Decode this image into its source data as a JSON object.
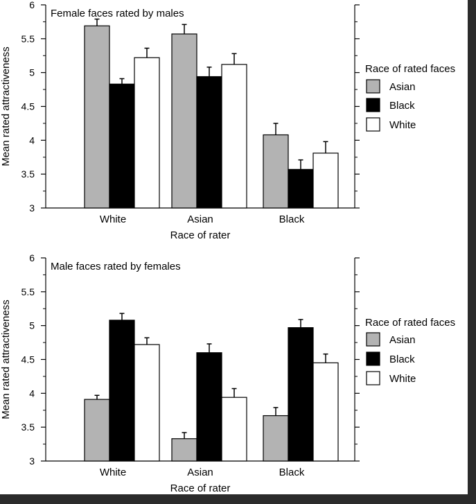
{
  "chart_data": [
    {
      "type": "bar",
      "title": "Female faces rated by males",
      "xlabel": "Race of rater",
      "ylabel": "Mean rated attractiveness",
      "ylim": [
        3,
        6
      ],
      "yticks": [
        "3",
        "3.5",
        "4",
        "4.5",
        "5",
        "5.5",
        "6"
      ],
      "categories": [
        "White",
        "Asian",
        "Black"
      ],
      "legend_title": "Race of rated faces",
      "legend_position": "right",
      "series": [
        {
          "name": "Asian",
          "color": "#b3b3b3",
          "values": [
            5.69,
            5.57,
            4.08
          ],
          "errors": [
            0.1,
            0.14,
            0.17
          ]
        },
        {
          "name": "Black",
          "color": "#000000",
          "values": [
            4.83,
            4.94,
            3.57
          ],
          "errors": [
            0.08,
            0.14,
            0.14
          ]
        },
        {
          "name": "White",
          "color": "#ffffff",
          "values": [
            5.22,
            5.12,
            3.81
          ],
          "errors": [
            0.14,
            0.16,
            0.17
          ]
        }
      ]
    },
    {
      "type": "bar",
      "title": "Male faces rated by females",
      "xlabel": "Race of rater",
      "ylabel": "Mean rated attractiveness",
      "ylim": [
        3,
        6
      ],
      "yticks": [
        "3",
        "3.5",
        "4",
        "4.5",
        "5",
        "5.5",
        "6"
      ],
      "categories": [
        "White",
        "Asian",
        "Black"
      ],
      "legend_title": "Race of rated faces",
      "legend_position": "right",
      "series": [
        {
          "name": "Asian",
          "color": "#b3b3b3",
          "values": [
            3.91,
            3.33,
            3.67
          ],
          "errors": [
            0.06,
            0.09,
            0.12
          ]
        },
        {
          "name": "Black",
          "color": "#000000",
          "values": [
            5.08,
            4.6,
            4.97
          ],
          "errors": [
            0.1,
            0.13,
            0.12
          ]
        },
        {
          "name": "White",
          "color": "#ffffff",
          "values": [
            4.72,
            3.94,
            4.45
          ],
          "errors": [
            0.1,
            0.13,
            0.13
          ]
        }
      ]
    }
  ]
}
